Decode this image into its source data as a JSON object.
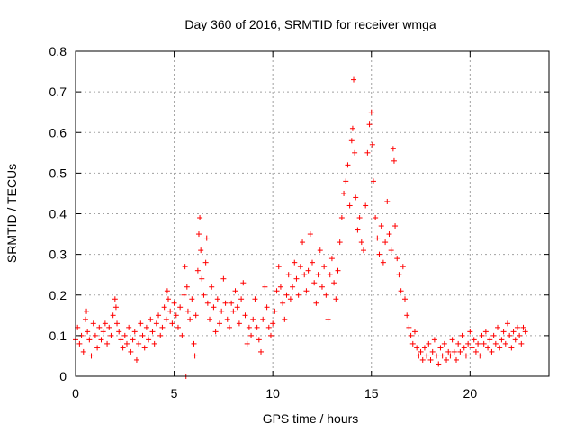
{
  "chart_data": {
    "type": "scatter",
    "title": "Day 360 of 2016, SRMTID for receiver wmga",
    "xlabel": "GPS time / hours",
    "ylabel": "SRMTID / TECUs",
    "xlim": [
      0,
      24
    ],
    "ylim": [
      0,
      0.8
    ],
    "xticks": [
      0,
      5,
      10,
      15,
      20
    ],
    "xtick_labels": [
      "0",
      "5",
      "10",
      "15",
      "20"
    ],
    "yticks": [
      0,
      0.1,
      0.2,
      0.3,
      0.4,
      0.5,
      0.6,
      0.7,
      0.8
    ],
    "ytick_labels": [
      "0",
      "0.1",
      "0.2",
      "0.3",
      "0.4",
      "0.5",
      "0.6",
      "0.7",
      "0.8"
    ],
    "grid": true,
    "marker": "+",
    "color": "#ff0000",
    "series": [
      {
        "name": "SRMTID",
        "points": [
          [
            0.0,
            0.09
          ],
          [
            0.1,
            0.12
          ],
          [
            0.2,
            0.08
          ],
          [
            0.3,
            0.1
          ],
          [
            0.4,
            0.06
          ],
          [
            0.5,
            0.14
          ],
          [
            0.55,
            0.16
          ],
          [
            0.6,
            0.11
          ],
          [
            0.7,
            0.09
          ],
          [
            0.8,
            0.05
          ],
          [
            0.9,
            0.13
          ],
          [
            1.0,
            0.1
          ],
          [
            1.1,
            0.07
          ],
          [
            1.2,
            0.12
          ],
          [
            1.3,
            0.09
          ],
          [
            1.4,
            0.11
          ],
          [
            1.5,
            0.13
          ],
          [
            1.6,
            0.08
          ],
          [
            1.7,
            0.12
          ],
          [
            1.8,
            0.1
          ],
          [
            1.9,
            0.15
          ],
          [
            2.0,
            0.19
          ],
          [
            2.05,
            0.17
          ],
          [
            2.1,
            0.13
          ],
          [
            2.2,
            0.11
          ],
          [
            2.3,
            0.09
          ],
          [
            2.4,
            0.07
          ],
          [
            2.5,
            0.1
          ],
          [
            2.6,
            0.08
          ],
          [
            2.7,
            0.12
          ],
          [
            2.8,
            0.06
          ],
          [
            2.9,
            0.09
          ],
          [
            3.0,
            0.11
          ],
          [
            3.1,
            0.04
          ],
          [
            3.2,
            0.08
          ],
          [
            3.3,
            0.13
          ],
          [
            3.4,
            0.1
          ],
          [
            3.5,
            0.07
          ],
          [
            3.6,
            0.12
          ],
          [
            3.7,
            0.09
          ],
          [
            3.8,
            0.14
          ],
          [
            3.9,
            0.11
          ],
          [
            4.0,
            0.08
          ],
          [
            4.1,
            0.13
          ],
          [
            4.2,
            0.15
          ],
          [
            4.3,
            0.1
          ],
          [
            4.4,
            0.12
          ],
          [
            4.5,
            0.17
          ],
          [
            4.6,
            0.14
          ],
          [
            4.65,
            0.21
          ],
          [
            4.7,
            0.19
          ],
          [
            4.8,
            0.16
          ],
          [
            4.9,
            0.13
          ],
          [
            5.0,
            0.18
          ],
          [
            5.1,
            0.15
          ],
          [
            5.2,
            0.12
          ],
          [
            5.3,
            0.17
          ],
          [
            5.4,
            0.1
          ],
          [
            5.5,
            0.2
          ],
          [
            5.55,
            0.27
          ],
          [
            5.6,
            0.0
          ],
          [
            5.65,
            0.22
          ],
          [
            5.7,
            0.16
          ],
          [
            5.8,
            0.14
          ],
          [
            5.9,
            0.19
          ],
          [
            6.0,
            0.08
          ],
          [
            6.05,
            0.05
          ],
          [
            6.1,
            0.15
          ],
          [
            6.2,
            0.26
          ],
          [
            6.25,
            0.35
          ],
          [
            6.3,
            0.39
          ],
          [
            6.35,
            0.31
          ],
          [
            6.4,
            0.24
          ],
          [
            6.5,
            0.2
          ],
          [
            6.6,
            0.28
          ],
          [
            6.65,
            0.34
          ],
          [
            6.7,
            0.18
          ],
          [
            6.8,
            0.14
          ],
          [
            6.9,
            0.22
          ],
          [
            7.0,
            0.17
          ],
          [
            7.1,
            0.11
          ],
          [
            7.2,
            0.19
          ],
          [
            7.3,
            0.13
          ],
          [
            7.4,
            0.16
          ],
          [
            7.5,
            0.24
          ],
          [
            7.6,
            0.18
          ],
          [
            7.7,
            0.14
          ],
          [
            7.8,
            0.12
          ],
          [
            7.9,
            0.18
          ],
          [
            8.0,
            0.16
          ],
          [
            8.1,
            0.21
          ],
          [
            8.2,
            0.17
          ],
          [
            8.3,
            0.13
          ],
          [
            8.4,
            0.19
          ],
          [
            8.5,
            0.23
          ],
          [
            8.6,
            0.15
          ],
          [
            8.7,
            0.08
          ],
          [
            8.8,
            0.12
          ],
          [
            8.9,
            0.1
          ],
          [
            9.0,
            0.14
          ],
          [
            9.1,
            0.19
          ],
          [
            9.2,
            0.12
          ],
          [
            9.3,
            0.09
          ],
          [
            9.4,
            0.06
          ],
          [
            9.5,
            0.14
          ],
          [
            9.6,
            0.22
          ],
          [
            9.7,
            0.17
          ],
          [
            9.8,
            0.12
          ],
          [
            9.9,
            0.1
          ],
          [
            10.0,
            0.13
          ],
          [
            10.1,
            0.16
          ],
          [
            10.2,
            0.21
          ],
          [
            10.3,
            0.27
          ],
          [
            10.4,
            0.22
          ],
          [
            10.5,
            0.18
          ],
          [
            10.6,
            0.14
          ],
          [
            10.7,
            0.2
          ],
          [
            10.8,
            0.25
          ],
          [
            10.9,
            0.19
          ],
          [
            11.0,
            0.22
          ],
          [
            11.1,
            0.28
          ],
          [
            11.2,
            0.24
          ],
          [
            11.3,
            0.2
          ],
          [
            11.4,
            0.27
          ],
          [
            11.5,
            0.33
          ],
          [
            11.6,
            0.25
          ],
          [
            11.7,
            0.21
          ],
          [
            11.8,
            0.26
          ],
          [
            11.9,
            0.35
          ],
          [
            12.0,
            0.28
          ],
          [
            12.1,
            0.23
          ],
          [
            12.2,
            0.18
          ],
          [
            12.3,
            0.25
          ],
          [
            12.4,
            0.31
          ],
          [
            12.5,
            0.22
          ],
          [
            12.6,
            0.27
          ],
          [
            12.7,
            0.2
          ],
          [
            12.8,
            0.14
          ],
          [
            12.9,
            0.25
          ],
          [
            13.0,
            0.29
          ],
          [
            13.1,
            0.23
          ],
          [
            13.2,
            0.19
          ],
          [
            13.3,
            0.26
          ],
          [
            13.4,
            0.33
          ],
          [
            13.5,
            0.39
          ],
          [
            13.6,
            0.45
          ],
          [
            13.7,
            0.48
          ],
          [
            13.8,
            0.52
          ],
          [
            13.9,
            0.42
          ],
          [
            14.0,
            0.58
          ],
          [
            14.05,
            0.61
          ],
          [
            14.1,
            0.73
          ],
          [
            14.15,
            0.55
          ],
          [
            14.2,
            0.44
          ],
          [
            14.3,
            0.36
          ],
          [
            14.4,
            0.39
          ],
          [
            14.5,
            0.33
          ],
          [
            14.6,
            0.31
          ],
          [
            14.7,
            0.42
          ],
          [
            14.8,
            0.55
          ],
          [
            14.9,
            0.62
          ],
          [
            15.0,
            0.65
          ],
          [
            15.05,
            0.57
          ],
          [
            15.1,
            0.48
          ],
          [
            15.2,
            0.39
          ],
          [
            15.3,
            0.34
          ],
          [
            15.4,
            0.3
          ],
          [
            15.5,
            0.37
          ],
          [
            15.6,
            0.28
          ],
          [
            15.7,
            0.33
          ],
          [
            15.8,
            0.43
          ],
          [
            15.9,
            0.35
          ],
          [
            16.0,
            0.31
          ],
          [
            16.1,
            0.56
          ],
          [
            16.15,
            0.53
          ],
          [
            16.2,
            0.37
          ],
          [
            16.3,
            0.29
          ],
          [
            16.4,
            0.25
          ],
          [
            16.5,
            0.21
          ],
          [
            16.6,
            0.27
          ],
          [
            16.7,
            0.19
          ],
          [
            16.8,
            0.15
          ],
          [
            16.9,
            0.12
          ],
          [
            17.0,
            0.1
          ],
          [
            17.1,
            0.08
          ],
          [
            17.2,
            0.11
          ],
          [
            17.3,
            0.07
          ],
          [
            17.4,
            0.05
          ],
          [
            17.5,
            0.06
          ],
          [
            17.6,
            0.04
          ],
          [
            17.7,
            0.07
          ],
          [
            17.8,
            0.05
          ],
          [
            17.9,
            0.08
          ],
          [
            18.0,
            0.04
          ],
          [
            18.1,
            0.06
          ],
          [
            18.2,
            0.09
          ],
          [
            18.3,
            0.05
          ],
          [
            18.4,
            0.03
          ],
          [
            18.5,
            0.07
          ],
          [
            18.6,
            0.05
          ],
          [
            18.7,
            0.08
          ],
          [
            18.8,
            0.04
          ],
          [
            18.9,
            0.06
          ],
          [
            19.0,
            0.05
          ],
          [
            19.1,
            0.09
          ],
          [
            19.2,
            0.06
          ],
          [
            19.3,
            0.04
          ],
          [
            19.4,
            0.08
          ],
          [
            19.5,
            0.06
          ],
          [
            19.6,
            0.1
          ],
          [
            19.7,
            0.07
          ],
          [
            19.8,
            0.05
          ],
          [
            19.9,
            0.08
          ],
          [
            20.0,
            0.11
          ],
          [
            20.1,
            0.07
          ],
          [
            20.2,
            0.09
          ],
          [
            20.3,
            0.06
          ],
          [
            20.4,
            0.08
          ],
          [
            20.5,
            0.05
          ],
          [
            20.6,
            0.1
          ],
          [
            20.7,
            0.08
          ],
          [
            20.8,
            0.11
          ],
          [
            20.9,
            0.07
          ],
          [
            21.0,
            0.09
          ],
          [
            21.1,
            0.06
          ],
          [
            21.2,
            0.1
          ],
          [
            21.3,
            0.08
          ],
          [
            21.4,
            0.12
          ],
          [
            21.5,
            0.07
          ],
          [
            21.6,
            0.09
          ],
          [
            21.7,
            0.11
          ],
          [
            21.8,
            0.08
          ],
          [
            21.9,
            0.13
          ],
          [
            22.0,
            0.1
          ],
          [
            22.1,
            0.07
          ],
          [
            22.2,
            0.11
          ],
          [
            22.3,
            0.09
          ],
          [
            22.4,
            0.12
          ],
          [
            22.5,
            0.1
          ],
          [
            22.6,
            0.08
          ],
          [
            22.7,
            0.12
          ],
          [
            22.8,
            0.11
          ]
        ]
      }
    ]
  }
}
